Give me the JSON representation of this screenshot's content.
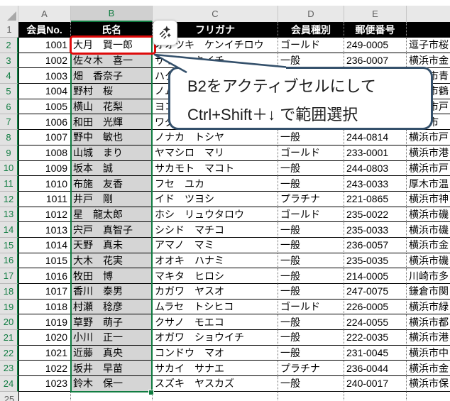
{
  "sheet": {
    "column_letters": [
      "A",
      "B",
      "C",
      "D",
      "E",
      ""
    ],
    "selected_column": "B",
    "selection": {
      "range": "B2:B24",
      "active_cell": "B2"
    },
    "table": {
      "headers": [
        "会員No.",
        "氏名",
        "フリガナ",
        "会員種別",
        "郵便番号",
        ""
      ],
      "rows": [
        {
          "num": "2",
          "no": "1001",
          "name": "大月　賢一郎",
          "kana": "オオツキ　ケンイチロウ",
          "type": "ゴールド",
          "zip": "249-0005",
          "addr": "逗子市桜",
          "selected": true,
          "active": true
        },
        {
          "num": "3",
          "no": "1002",
          "name": "佐々木　喜一",
          "kana": "ササキ　キイチ",
          "type": "一般",
          "zip": "236-0007",
          "addr": "横浜市金",
          "selected": true
        },
        {
          "num": "4",
          "no": "1003",
          "name": "畑　香奈子",
          "kana": "ハタ",
          "type": "",
          "zip": "",
          "addr": "横浜市青",
          "selected": true
        },
        {
          "num": "5",
          "no": "1004",
          "name": "野村　桜",
          "kana": "ノム",
          "type": "",
          "zip": "",
          "addr": "横浜市鶴",
          "selected": true
        },
        {
          "num": "6",
          "no": "1005",
          "name": "横山　花梨",
          "kana": "ヨコ",
          "type": "",
          "zip": "",
          "addr": "横浜市戸",
          "selected": true
        },
        {
          "num": "7",
          "no": "1006",
          "name": "和田　光輝",
          "kana": "ワダ",
          "type": "",
          "zip": "",
          "addr": "鎌倉市",
          "selected": true
        },
        {
          "num": "8",
          "no": "1007",
          "name": "野中　敏也",
          "kana": "ノナカ　トシヤ",
          "type": "一般",
          "zip": "244-0814",
          "addr": "横浜市戸",
          "selected": true
        },
        {
          "num": "9",
          "no": "1008",
          "name": "山城　まり",
          "kana": "ヤマシロ　マリ",
          "type": "ゴールド",
          "zip": "233-0001",
          "addr": "横浜市港",
          "selected": true
        },
        {
          "num": "10",
          "no": "1009",
          "name": "坂本　誠",
          "kana": "サカモト　マコト",
          "type": "一般",
          "zip": "244-0803",
          "addr": "横浜市戸",
          "selected": true
        },
        {
          "num": "11",
          "no": "1010",
          "name": "布施　友香",
          "kana": "フセ　ユカ",
          "type": "一般",
          "zip": "243-0033",
          "addr": "厚木市温",
          "selected": true
        },
        {
          "num": "12",
          "no": "1011",
          "name": "井戸　剛",
          "kana": "イド　ツヨシ",
          "type": "プラチナ",
          "zip": "221-0865",
          "addr": "横浜市神",
          "selected": true
        },
        {
          "num": "13",
          "no": "1012",
          "name": "星　龍太郎",
          "kana": "ホシ　リュウタロウ",
          "type": "ゴールド",
          "zip": "235-0022",
          "addr": "横浜市磯",
          "selected": true
        },
        {
          "num": "14",
          "no": "1013",
          "name": "宍戸　真智子",
          "kana": "シシド　マチコ",
          "type": "一般",
          "zip": "235-0033",
          "addr": "横浜市磯",
          "selected": true
        },
        {
          "num": "15",
          "no": "1014",
          "name": "天野　真未",
          "kana": "アマノ　マミ",
          "type": "一般",
          "zip": "236-0057",
          "addr": "横浜市金",
          "selected": true
        },
        {
          "num": "16",
          "no": "1015",
          "name": "大木　花実",
          "kana": "オオキ　ハナミ",
          "type": "一般",
          "zip": "235-0035",
          "addr": "横浜市磯",
          "selected": true
        },
        {
          "num": "17",
          "no": "1016",
          "name": "牧田　博",
          "kana": "マキタ　ヒロシ",
          "type": "一般",
          "zip": "214-0005",
          "addr": "川崎市多",
          "selected": true
        },
        {
          "num": "18",
          "no": "1017",
          "name": "香川　泰男",
          "kana": "カガワ　ヤスオ",
          "type": "一般",
          "zip": "247-0075",
          "addr": "鎌倉市関",
          "selected": true
        },
        {
          "num": "19",
          "no": "1018",
          "name": "村瀬　稔彦",
          "kana": "ムラセ　トシヒコ",
          "type": "ゴールド",
          "zip": "226-0005",
          "addr": "横浜市緑",
          "selected": true
        },
        {
          "num": "20",
          "no": "1019",
          "name": "草野　萌子",
          "kana": "クサノ　モエコ",
          "type": "一般",
          "zip": "224-0055",
          "addr": "横浜市都",
          "selected": true
        },
        {
          "num": "21",
          "no": "1020",
          "name": "小川　正一",
          "kana": "オガワ　ショウイチ",
          "type": "一般",
          "zip": "222-0035",
          "addr": "横浜市港",
          "selected": true
        },
        {
          "num": "22",
          "no": "1021",
          "name": "近藤　真央",
          "kana": "コンドウ　マオ",
          "type": "一般",
          "zip": "231-0045",
          "addr": "横浜市中",
          "selected": true
        },
        {
          "num": "23",
          "no": "1022",
          "name": "坂井　早苗",
          "kana": "サカイ　サナエ",
          "type": "プラチナ",
          "zip": "236-0044",
          "addr": "横浜市金",
          "selected": true
        },
        {
          "num": "24",
          "no": "1023",
          "name": "鈴木　保一",
          "kana": "スズキ　ヤスカズ",
          "type": "一般",
          "zip": "240-0017",
          "addr": "横浜市保",
          "selected": true
        },
        {
          "num": "25",
          "no": "",
          "name": "",
          "kana": "",
          "type": "",
          "zip": "",
          "addr": "",
          "selected": false
        }
      ]
    }
  },
  "callout": {
    "line1": "B2をアクティブセルにして",
    "line2": "Ctrl+Shift＋↓ で範囲選択"
  },
  "icons": {
    "flash_fill": "sparkle-flash-fill-icon"
  },
  "colors": {
    "excel_green": "#107C41",
    "annotation_red": "#DE0A0A",
    "callout_border": "#34506B",
    "selection_fill": "#D5D5D5",
    "header_fill": "#000000",
    "header_text": "#FFFFFF"
  }
}
